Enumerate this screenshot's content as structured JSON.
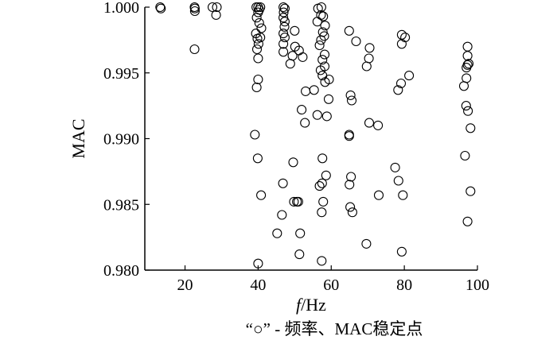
{
  "chart_data": {
    "type": "scatter",
    "title": "",
    "xlabel": "f/Hz",
    "xlabel_italic": "f",
    "xlabel_rest": "/Hz",
    "ylabel": "MAC",
    "xlim": [
      9,
      100
    ],
    "ylim": [
      0.98,
      1.0
    ],
    "xticks": [
      20,
      40,
      60,
      80,
      100
    ],
    "xtick_labels": [
      "20",
      "40",
      "60",
      "80",
      "100"
    ],
    "yticks": [
      0.98,
      0.985,
      0.99,
      0.995,
      1.0
    ],
    "ytick_labels": [
      "0.980",
      "0.985",
      "0.990",
      "0.995",
      "1.000"
    ],
    "grid": false,
    "marker": "open-circle",
    "caption": "“○” - 频率、MAC稳定点",
    "series": [
      {
        "points": [
          [
            13.2,
            1.0
          ],
          [
            13.4,
            0.9999
          ],
          [
            22.6,
            1.0
          ],
          [
            22.7,
            0.9999
          ],
          [
            22.7,
            0.9997
          ],
          [
            22.6,
            0.9968
          ],
          [
            27.5,
            1.0
          ],
          [
            28.7,
            1.0
          ],
          [
            28.5,
            0.9994
          ],
          [
            39.5,
            1.0
          ],
          [
            40.0,
            1.0
          ],
          [
            40.6,
            1.0
          ],
          [
            40.3,
            0.9998
          ],
          [
            40.0,
            0.9996
          ],
          [
            39.6,
            0.9992
          ],
          [
            40.3,
            0.9988
          ],
          [
            40.9,
            0.9984
          ],
          [
            39.4,
            0.998
          ],
          [
            39.8,
            0.9976
          ],
          [
            40.1,
            0.9972
          ],
          [
            40.6,
            0.9977
          ],
          [
            39.7,
            0.9968
          ],
          [
            40.0,
            0.9961
          ],
          [
            40.0,
            0.9945
          ],
          [
            39.6,
            0.9939
          ],
          [
            39.1,
            0.9903
          ],
          [
            39.9,
            0.9885
          ],
          [
            40.8,
            0.9857
          ],
          [
            40.0,
            0.9805
          ],
          [
            46.9,
            1.0
          ],
          [
            47.3,
            0.9999
          ],
          [
            47.0,
            0.9996
          ],
          [
            46.9,
            0.9992
          ],
          [
            47.3,
            0.9989
          ],
          [
            47.2,
            0.9985
          ],
          [
            46.9,
            0.998
          ],
          [
            47.3,
            0.9977
          ],
          [
            46.9,
            0.9972
          ],
          [
            46.9,
            0.9966
          ],
          [
            49.4,
            0.9963
          ],
          [
            50.0,
            0.9982
          ],
          [
            50.1,
            0.997
          ],
          [
            51.2,
            0.9967
          ],
          [
            52.2,
            0.9962
          ],
          [
            48.8,
            0.9957
          ],
          [
            49.6,
            0.9882
          ],
          [
            46.8,
            0.9866
          ],
          [
            46.5,
            0.9842
          ],
          [
            49.8,
            0.9852
          ],
          [
            50.6,
            0.9852
          ],
          [
            51.0,
            0.9852
          ],
          [
            51.5,
            0.9828
          ],
          [
            45.2,
            0.9828
          ],
          [
            51.3,
            0.9812
          ],
          [
            51.9,
            0.9922
          ],
          [
            52.8,
            0.9912
          ],
          [
            53.0,
            0.9936
          ],
          [
            55.3,
            0.9937
          ],
          [
            56.2,
            0.9918
          ],
          [
            56.4,
            0.9999
          ],
          [
            57.3,
            1.0
          ],
          [
            57.2,
            0.9994
          ],
          [
            57.8,
            0.9993
          ],
          [
            56.2,
            0.9989
          ],
          [
            58.3,
            0.9986
          ],
          [
            57.7,
            0.9981
          ],
          [
            58.1,
            0.9978
          ],
          [
            57.2,
            0.9975
          ],
          [
            56.8,
            0.9971
          ],
          [
            58.2,
            0.9964
          ],
          [
            57.6,
            0.996
          ],
          [
            58.2,
            0.9955
          ],
          [
            57.1,
            0.9952
          ],
          [
            57.6,
            0.9948
          ],
          [
            58.3,
            0.9943
          ],
          [
            59.4,
            0.9945
          ],
          [
            58.8,
            0.9917
          ],
          [
            59.3,
            0.993
          ],
          [
            57.6,
            0.9885
          ],
          [
            58.6,
            0.9872
          ],
          [
            56.8,
            0.9864
          ],
          [
            57.5,
            0.9866
          ],
          [
            57.8,
            0.9852
          ],
          [
            57.4,
            0.9844
          ],
          [
            57.4,
            0.9807
          ],
          [
            64.9,
            0.9982
          ],
          [
            66.8,
            0.9974
          ],
          [
            65.3,
            0.9933
          ],
          [
            65.6,
            0.9929
          ],
          [
            64.9,
            0.9903
          ],
          [
            64.9,
            0.9902
          ],
          [
            65.4,
            0.9871
          ],
          [
            65.0,
            0.9865
          ],
          [
            65.2,
            0.9848
          ],
          [
            65.8,
            0.9844
          ],
          [
            69.6,
            0.982
          ],
          [
            70.5,
            0.9969
          ],
          [
            70.3,
            0.9961
          ],
          [
            69.7,
            0.9955
          ],
          [
            70.4,
            0.9912
          ],
          [
            72.8,
            0.991
          ],
          [
            73.0,
            0.9857
          ],
          [
            79.3,
            0.9979
          ],
          [
            80.2,
            0.9977
          ],
          [
            79.3,
            0.9972
          ],
          [
            81.3,
            0.9948
          ],
          [
            79.1,
            0.9942
          ],
          [
            78.3,
            0.9937
          ],
          [
            77.5,
            0.9878
          ],
          [
            78.4,
            0.9868
          ],
          [
            79.6,
            0.9857
          ],
          [
            79.3,
            0.9814
          ],
          [
            97.3,
            0.997
          ],
          [
            97.3,
            0.9963
          ],
          [
            97.6,
            0.9957
          ],
          [
            97.3,
            0.9956
          ],
          [
            97.0,
            0.9954
          ],
          [
            96.3,
            0.994
          ],
          [
            97.0,
            0.9946
          ],
          [
            96.9,
            0.9925
          ],
          [
            97.4,
            0.9921
          ],
          [
            98.1,
            0.9908
          ],
          [
            96.6,
            0.9887
          ],
          [
            98.1,
            0.986
          ],
          [
            97.3,
            0.9837
          ]
        ]
      }
    ]
  }
}
